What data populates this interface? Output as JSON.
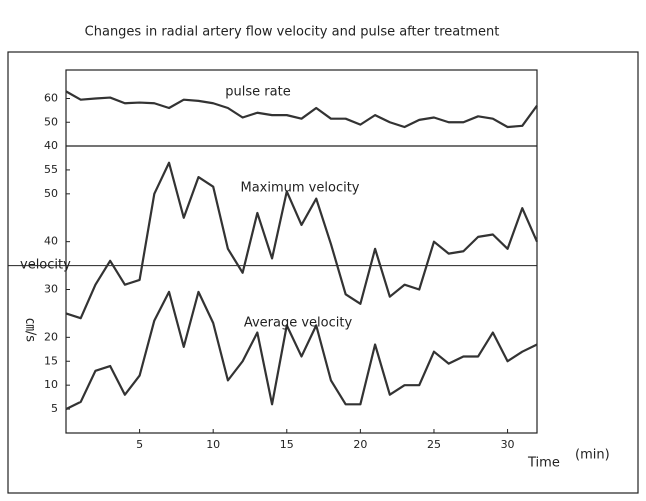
{
  "title": "Changes in radial artery flow velocity and pulse after treatment",
  "y_label": "velocity",
  "y_unit": "㎝/s",
  "x_label": "Time",
  "x_unit": "(min)",
  "chart_data": [
    {
      "type": "line",
      "xlim": [
        0,
        32
      ],
      "ylim": [
        40,
        72
      ],
      "yticks": [
        40,
        50,
        60
      ],
      "x": [
        0,
        1,
        2,
        3,
        4,
        5,
        6,
        7,
        8,
        9,
        10,
        11,
        12,
        13,
        14,
        15,
        16,
        17,
        18,
        19,
        20,
        21,
        22,
        23,
        24,
        25,
        26,
        27,
        28,
        29,
        30,
        31,
        32
      ],
      "series": [
        {
          "name": "pulse rate",
          "color": "#333333",
          "values": [
            63,
            59.5,
            60,
            60.4,
            58,
            58.3,
            58,
            56,
            59.5,
            59,
            58,
            56,
            52,
            54,
            53,
            53,
            51.5,
            56,
            51.5,
            51.5,
            49,
            53,
            50,
            48,
            51,
            52,
            50,
            50,
            52.5,
            51.5,
            48,
            48.5,
            57
          ]
        }
      ]
    },
    {
      "type": "line",
      "xlim": [
        0,
        32
      ],
      "ylim": [
        0,
        60
      ],
      "yticks": [
        5,
        10,
        15,
        20,
        30,
        40,
        50,
        55
      ],
      "xticks": [
        5,
        10,
        15,
        20,
        25,
        30
      ],
      "hlines": [
        35
      ],
      "x": [
        0,
        1,
        2,
        3,
        4,
        5,
        6,
        7,
        8,
        9,
        10,
        11,
        12,
        13,
        14,
        15,
        16,
        17,
        18,
        19,
        20,
        21,
        22,
        23,
        24,
        25,
        26,
        27,
        28,
        29,
        30,
        31,
        32
      ],
      "series": [
        {
          "name": "Maximum velocity",
          "color": "#333333",
          "values": [
            25,
            24,
            31,
            36,
            31,
            32,
            50,
            56.5,
            45,
            53.5,
            51.5,
            38.5,
            33.5,
            46,
            36.5,
            50.5,
            43.5,
            49,
            39.5,
            29,
            27,
            38.5,
            28.5,
            31,
            30,
            40,
            37.5,
            38,
            41,
            41.5,
            38.5,
            47,
            40
          ]
        },
        {
          "name": "Average velocity",
          "color": "#333333",
          "values": [
            5,
            6.5,
            13,
            14,
            8,
            12,
            23.5,
            29.5,
            18,
            29.5,
            23,
            11,
            15,
            21,
            6,
            22.5,
            16,
            22.5,
            11,
            6,
            6,
            18.5,
            8,
            10,
            10,
            17,
            14.5,
            16,
            16,
            21,
            15,
            17,
            18.5
          ]
        }
      ]
    }
  ]
}
